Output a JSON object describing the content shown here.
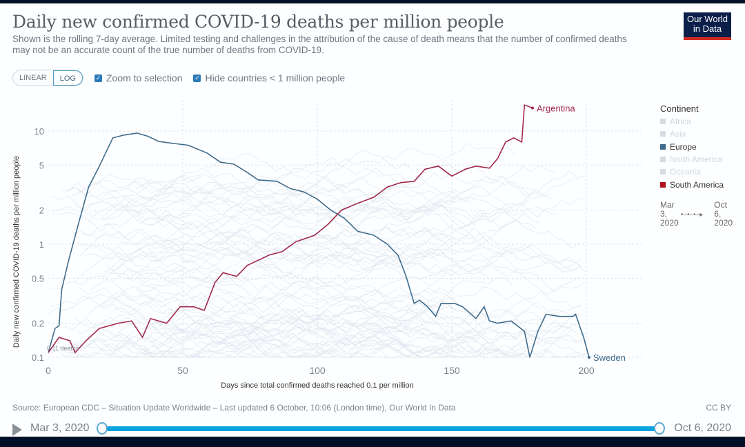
{
  "header": {
    "title": "Daily new confirmed COVID-19 deaths per million people",
    "subtitle": "Shown is the rolling 7-day average. Limited testing and challenges in the attribution of the cause of death means that the number of confirmed deaths may not be an accurate count of the true number of deaths from COVID-19.",
    "logo": "Our World in Data"
  },
  "controls": {
    "linear": "LINEAR",
    "log": "LOG",
    "zoom_label": "Zoom to selection",
    "hide_label": "Hide countries < 1 million people"
  },
  "legend": {
    "title": "Continent",
    "items": [
      {
        "label": "Africa",
        "color": "#d5dbe3",
        "active": false
      },
      {
        "label": "Asia",
        "color": "#d5dbe3",
        "active": false
      },
      {
        "label": "Europe",
        "color": "#3e6b8c",
        "active": true
      },
      {
        "label": "North America",
        "color": "#d5dbe3",
        "active": false
      },
      {
        "label": "Oceania",
        "color": "#d5dbe3",
        "active": false
      },
      {
        "label": "South America",
        "color": "#b0121e",
        "active": true
      }
    ],
    "date_start": [
      "Mar",
      "3,",
      "2020"
    ],
    "date_end": [
      "Oct",
      "6,",
      "2020"
    ]
  },
  "chart_data": {
    "type": "line",
    "title": "Daily new confirmed COVID-19 deaths per million people",
    "xlabel": "Days since total confirmed deaths reached 0.1 per million",
    "ylabel": "Daily new confirmed COVID-19 deaths per million people",
    "yscale": "log",
    "xlim": [
      0,
      200
    ],
    "ylim": [
      0.1,
      20
    ],
    "xticks": [
      0,
      50,
      100,
      150,
      200
    ],
    "yticks": [
      0.1,
      0.2,
      0.5,
      1,
      2,
      5,
      10
    ],
    "ytick_labels": [
      "0.1",
      "0.2",
      "0.5",
      "1",
      "2",
      "5",
      "10"
    ],
    "grid": true,
    "annotation": "0.11 deaths",
    "series": [
      {
        "name": "Sweden",
        "color": "#3e6b8c",
        "x": [
          0,
          2.5,
          4,
          5,
          7.7,
          11.5,
          15,
          19,
          24,
          28,
          33,
          37,
          41,
          46,
          52,
          59,
          64,
          69,
          74,
          78,
          85,
          90,
          95,
          100,
          105,
          110,
          115,
          121,
          126,
          130,
          133,
          136,
          138,
          141,
          144,
          146,
          151,
          154,
          159,
          162,
          164,
          167,
          172,
          177,
          179,
          182,
          185,
          190,
          195,
          196,
          199,
          201
        ],
        "y": [
          0.11,
          0.18,
          0.19,
          0.4,
          0.74,
          1.6,
          3.2,
          4.9,
          8.7,
          9.2,
          9.6,
          9,
          8.1,
          7.8,
          7.5,
          6.4,
          5.3,
          5.1,
          4.3,
          3.7,
          3.6,
          3.1,
          2.9,
          2.5,
          2,
          1.7,
          1.3,
          1.2,
          1,
          0.8,
          0.52,
          0.3,
          0.32,
          0.28,
          0.23,
          0.3,
          0.3,
          0.28,
          0.22,
          0.28,
          0.21,
          0.2,
          0.21,
          0.17,
          0.1,
          0.17,
          0.24,
          0.23,
          0.23,
          0.24,
          0.15,
          0.1
        ]
      },
      {
        "name": "Argentina",
        "color": "#a2294a",
        "x": [
          0,
          4,
          8,
          10,
          14,
          19,
          26,
          31,
          35,
          38,
          44,
          49,
          54,
          58,
          62,
          65,
          70,
          74,
          82,
          87,
          92,
          99,
          104,
          109,
          115,
          121,
          126,
          131,
          136,
          140,
          145,
          150,
          155,
          159,
          164,
          167,
          170,
          173,
          176,
          177,
          180
        ],
        "y": [
          0.11,
          0.15,
          0.14,
          0.11,
          0.14,
          0.18,
          0.2,
          0.21,
          0.15,
          0.22,
          0.2,
          0.28,
          0.28,
          0.26,
          0.46,
          0.56,
          0.52,
          0.65,
          0.8,
          0.86,
          1.05,
          1.2,
          1.5,
          2,
          2.3,
          2.6,
          3.2,
          3.5,
          3.6,
          4.6,
          4.9,
          4,
          4.6,
          4.9,
          4.7,
          5.7,
          8,
          8.7,
          8,
          17,
          16
        ]
      }
    ]
  },
  "footer": {
    "source": "Source: European CDC – Situation Update Worldwide – Last updated 6 October, 10:06 (London time), Our World In Data",
    "license": "CC BY",
    "timeline_start": "Mar 3, 2020",
    "timeline_end": "Oct 6, 2020"
  }
}
